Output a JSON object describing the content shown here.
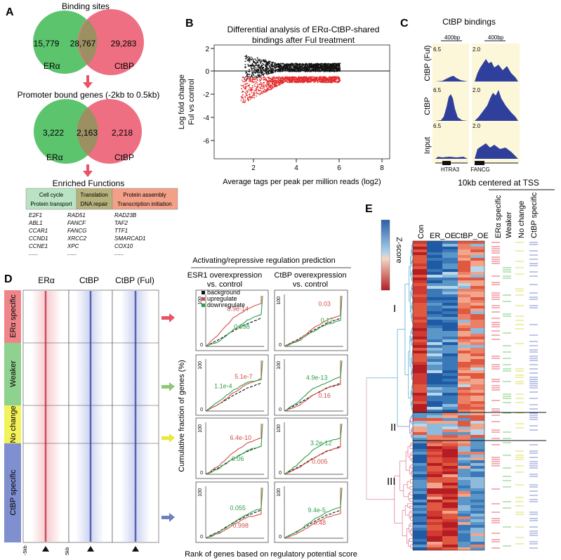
{
  "panelA": {
    "letter": "A",
    "venn1": {
      "title": "Binding sites",
      "left": "15,779",
      "mid": "28,767",
      "right": "29,283",
      "label_left": "ERα",
      "label_right": "CtBP"
    },
    "promoter_title": "Promoter bound genes (-2kb to 0.5kb)",
    "venn2": {
      "left": "3,222",
      "mid": "2,163",
      "right": "2,218",
      "label_left": "ERα",
      "label_right": "CtBP"
    },
    "enriched_title": "Enriched Functions",
    "boxes": [
      {
        "line1": "Cell cycle",
        "line2": "Protein transport",
        "genes": [
          "E2F1",
          "ABL1",
          "CCAR1",
          "CCND1",
          "CCNE1",
          "......"
        ]
      },
      {
        "line1": "Translation",
        "line2": "DNA repair",
        "genes": [
          "RAD51",
          "FANCF",
          "FANCG",
          "XRCC2",
          "XPC",
          "......"
        ]
      },
      {
        "line1": "Protein assembly",
        "line2": "Transcription initiation",
        "genes": [
          "RAD23B",
          "TAF2",
          "TTF1",
          "SMARCAD1",
          "COX10",
          "......"
        ]
      }
    ],
    "colors": {
      "green": "#5cc46d",
      "pink": "#ee6f82",
      "overlap": "#9c8f62",
      "box1": "#b9e3c2",
      "box2": "#b6b07c",
      "box3": "#f3a088",
      "arrow": "#e85466"
    }
  },
  "panelB": {
    "letter": "B",
    "title_line1": "Differential analysis of ERα-CtBP-shared",
    "title_line2": "bindings after Ful treatment",
    "ylabel_line1": "Log fold change",
    "ylabel_line2": "Ful vs control",
    "xlabel": "Average tags per peak per million reads (log2)",
    "xticks": [
      "2",
      "4",
      "6",
      "8"
    ],
    "yticks": [
      "2",
      "0",
      "-2",
      "-4",
      "-6"
    ]
  },
  "panelC": {
    "letter": "C",
    "title": "CtBP bindings",
    "scale_label": "400bp",
    "rows": [
      "CtBP (Ful)",
      "CtBP",
      "Input"
    ],
    "left_max": "6.5",
    "right_max": "2.0",
    "genes": [
      "HTRA3",
      "FANCG"
    ]
  },
  "panelD": {
    "letter": "D",
    "col_headers": [
      "ERα",
      "CtBP",
      "CtBP (Ful)"
    ],
    "groups": [
      "ERα specific",
      "Weaker",
      "No change",
      "CtBP specific"
    ],
    "group_colors": [
      "#f08589",
      "#8fd18e",
      "#f2f25a",
      "#7f8fd0"
    ],
    "arrow_colors": [
      "#e85466",
      "#8fc87a",
      "#e8e83a",
      "#6f7fc2"
    ],
    "axis_left": "-5kb",
    "axis_right": "5kb",
    "pred_title": "Activating/repressive regulation prediction",
    "col1_title_line1": "ESR1 overexpression",
    "col1_title_line2": "vs. control",
    "col2_title_line1": "CtBP overexpression",
    "col2_title_line2": "vs. control",
    "legend": [
      "background",
      "upregulate",
      "downregulate"
    ],
    "ylabel": "Cumulative fraction of genes (%)",
    "xlabel": "Rank of genes based on regulatory potential score",
    "ytick_top": "100",
    "ytick_bottom": "0",
    "pvals": [
      {
        "up": "8.9e-14",
        "down": "0.998"
      },
      {
        "up": "0.03",
        "down": "0.17"
      },
      {
        "up": "5.1e-7",
        "down": "1.1e-4"
      },
      {
        "up": "0.16",
        "down": "4.9e-13"
      },
      {
        "up": "6.4e-10",
        "down": "0.06"
      },
      {
        "up": "0.005",
        "down": "3.2e-12"
      },
      {
        "up": "0.998",
        "down": "0.055"
      },
      {
        "up": "0.48",
        "down": "9.4e-5"
      }
    ],
    "colors": {
      "up": "#d2504a",
      "down": "#2f9e48",
      "bg": "#111111"
    }
  },
  "panelE": {
    "letter": "E",
    "header": "10kb centered at TSS",
    "cols": [
      "Con",
      "ER_OE",
      "CtBP_OE"
    ],
    "track_labels": [
      "ERα specific",
      "Weaker",
      "No change",
      "CtBP specific"
    ],
    "track_colors": [
      "#e8505e",
      "#6cc466",
      "#d8d84a",
      "#6f7fd0"
    ],
    "zscore": "Z-score",
    "clusters": [
      "I",
      "II",
      "III"
    ]
  }
}
